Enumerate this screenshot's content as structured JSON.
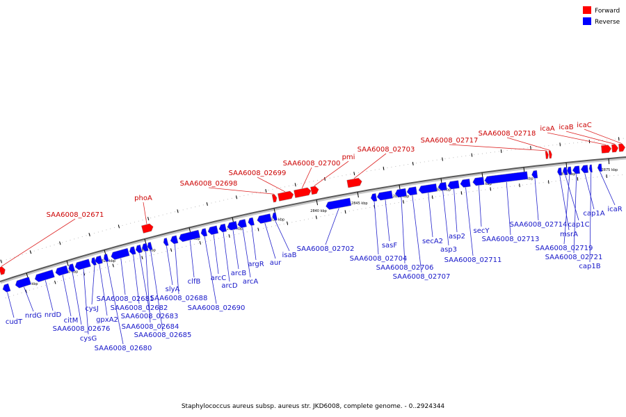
{
  "legend": {
    "forward_label": "Forward",
    "reverse_label": "Reverse",
    "forward_color": "#ff0000",
    "reverse_color": "#0000ff"
  },
  "caption": "Staphylococcus aureus subsp. aureus str. JKD6008, complete genome. - 0..2924344",
  "scale_ticks": [
    "2805 kbp",
    "2810 kbp",
    "2815 kbp",
    "2820 kbp",
    "2825 kbp",
    "2830 kbp",
    "2835 kbp",
    "2840 kbp",
    "2845 kbp",
    "2850 kbp",
    "2855 kbp",
    "2860 kbp",
    "2865 kbp",
    "2870 kbp",
    "2875 kbp"
  ],
  "forward_genes": [
    {
      "name": "SAA6008_02671"
    },
    {
      "name": "phoA"
    },
    {
      "name": "SAA6008_02698"
    },
    {
      "name": "SAA6008_02699"
    },
    {
      "name": "SAA6008_02700"
    },
    {
      "name": "pmi"
    },
    {
      "name": "SAA6008_02703"
    },
    {
      "name": "SAA6008_02717"
    },
    {
      "name": "SAA6008_02718"
    },
    {
      "name": "icaA"
    },
    {
      "name": "icaB"
    },
    {
      "name": "icaC"
    }
  ],
  "reverse_genes": [
    {
      "name": "cudT"
    },
    {
      "name": "nrdG"
    },
    {
      "name": "nrdD"
    },
    {
      "name": "citM"
    },
    {
      "name": "SAA6008_02676"
    },
    {
      "name": "cysG"
    },
    {
      "name": "cysJ"
    },
    {
      "name": "gpxA2"
    },
    {
      "name": "SAA6008_02680"
    },
    {
      "name": "SAA6008_02681"
    },
    {
      "name": "SAA6008_02682"
    },
    {
      "name": "SAA6008_02683"
    },
    {
      "name": "SAA6008_02684"
    },
    {
      "name": "SAA6008_02685"
    },
    {
      "name": "slyA"
    },
    {
      "name": "SAA6008_02688"
    },
    {
      "name": "clfB"
    },
    {
      "name": "SAA6008_02690"
    },
    {
      "name": "arcC"
    },
    {
      "name": "arcD"
    },
    {
      "name": "arcB"
    },
    {
      "name": "arcA"
    },
    {
      "name": "argR"
    },
    {
      "name": "aur"
    },
    {
      "name": "isaB"
    },
    {
      "name": "SAA6008_02702"
    },
    {
      "name": "SAA6008_02704"
    },
    {
      "name": "sasF"
    },
    {
      "name": "SAA6008_02706"
    },
    {
      "name": "SAA6008_02707"
    },
    {
      "name": "secA2"
    },
    {
      "name": "asp3"
    },
    {
      "name": "asp2"
    },
    {
      "name": "SAA6008_02711"
    },
    {
      "name": "secY"
    },
    {
      "name": "SAA6008_02713"
    },
    {
      "name": "SAA6008_02714"
    },
    {
      "name": "msrA"
    },
    {
      "name": "cap1C"
    },
    {
      "name": "SAA6008_02719"
    },
    {
      "name": "SAA6008_02721"
    },
    {
      "name": "cap1A"
    },
    {
      "name": "cap1B"
    },
    {
      "name": "icaR"
    }
  ]
}
